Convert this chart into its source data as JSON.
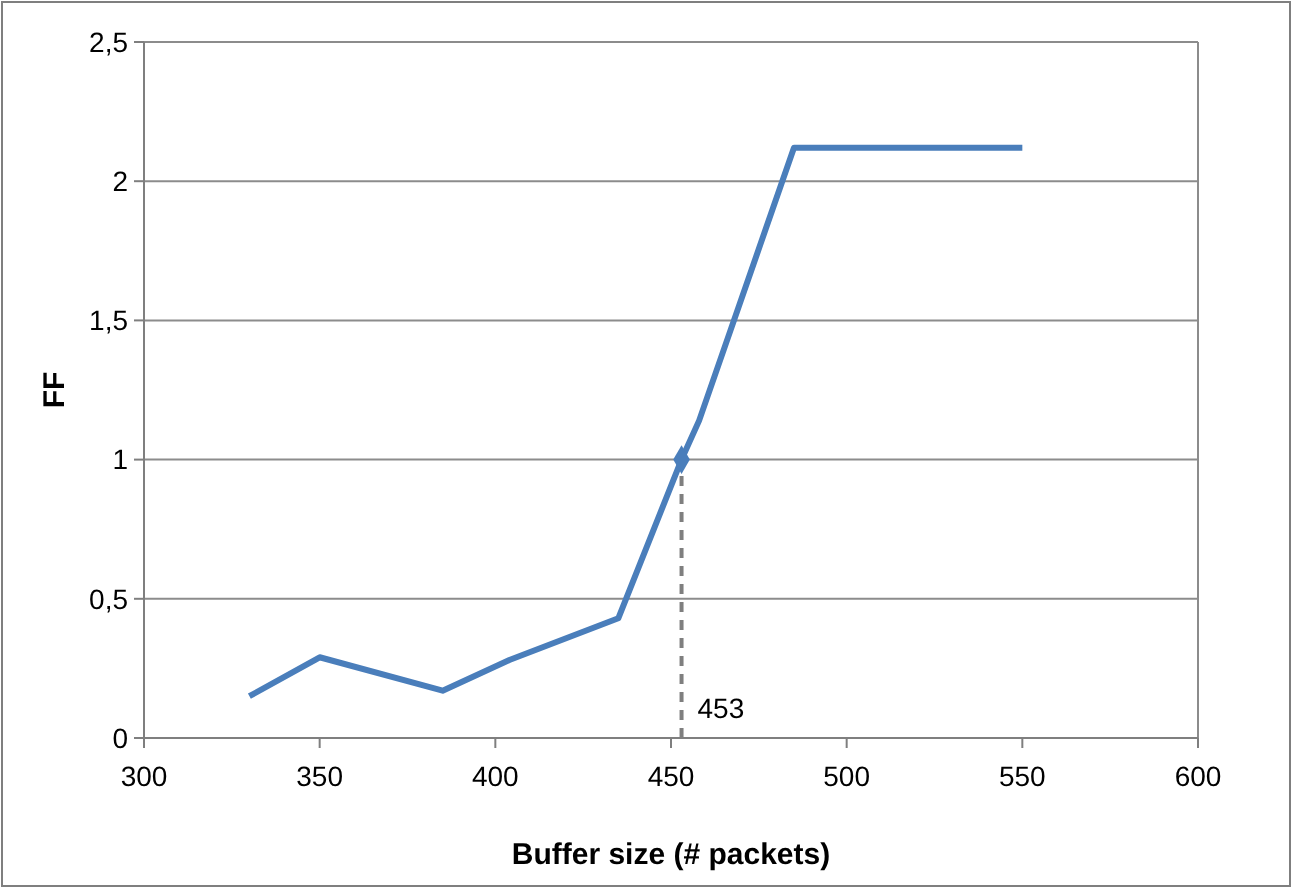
{
  "chart_data": {
    "type": "line",
    "xlabel": "Buffer size (# packets)",
    "ylabel": "FF",
    "xlim": [
      300,
      600
    ],
    "xticks": [
      300,
      350,
      400,
      450,
      500,
      550,
      600
    ],
    "ylim": [
      0,
      2.5
    ],
    "yticks": [
      0,
      {
        "value": 0.5,
        "label": "0,5"
      },
      1,
      {
        "value": 1.5,
        "label": "1,5"
      },
      2,
      {
        "value": 2.5,
        "label": "2,5"
      }
    ],
    "grid": "y",
    "series": [
      {
        "color": "#4a7ebb",
        "marker": "none",
        "x": [
          330,
          350,
          385,
          404,
          435,
          453,
          458,
          485,
          500,
          550
        ],
        "values": [
          0.15,
          0.29,
          0.17,
          0.28,
          0.43,
          1.0,
          1.14,
          2.12,
          2.12,
          2.12
        ]
      },
      {
        "type": "scatter",
        "color": "#4a7ebb",
        "marker": "diamond",
        "x": [
          453
        ],
        "values": [
          1.0
        ]
      }
    ],
    "ref_lines": [
      {
        "axis": "x",
        "value": 453,
        "label": "453",
        "color": "#7f7f7f",
        "line_style": "dashed"
      }
    ]
  }
}
